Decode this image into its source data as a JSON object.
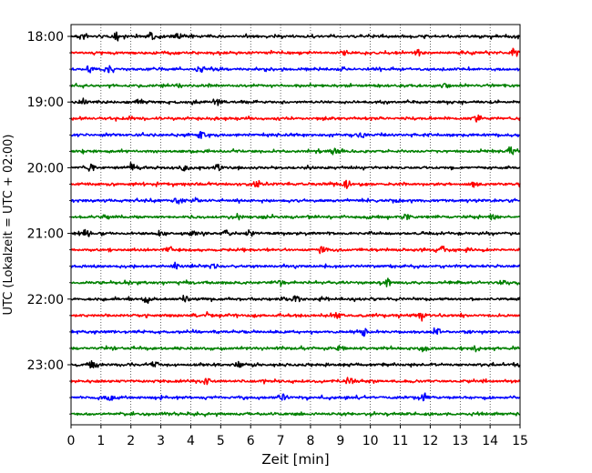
{
  "chart_data": {
    "type": "line",
    "subtype": "helicorder",
    "xlabel": "Zeit  [min]",
    "ylabel": "UTC (Lokalzeit = UTC + 02:00)",
    "xlim": [
      0,
      15
    ],
    "x_ticks": [
      "0",
      "1",
      "2",
      "3",
      "4",
      "5",
      "6",
      "7",
      "8",
      "9",
      "10",
      "11",
      "12",
      "13",
      "14",
      "15"
    ],
    "y_ticks": [
      "18:00",
      "19:00",
      "20:00",
      "21:00",
      "22:00",
      "23:00"
    ],
    "grid": "vertical dotted",
    "trace_minutes": 15,
    "trace_colors": [
      "#000000",
      "#ff0000",
      "#0000ff",
      "#008000"
    ],
    "traces": [
      {
        "start": "18:00",
        "bursts": [
          0.4,
          1.5,
          2.7,
          3.6
        ]
      },
      {
        "start": "18:15",
        "bursts": [
          9.1,
          11.6,
          14.8
        ]
      },
      {
        "start": "18:30",
        "bursts": [
          0.6,
          1.3,
          4.3
        ]
      },
      {
        "start": "18:45",
        "bursts": [
          12.5
        ]
      },
      {
        "start": "19:00",
        "bursts": [
          0.4,
          2.3,
          4.1,
          4.9
        ]
      },
      {
        "start": "19:15",
        "bursts": [
          13.6,
          15.0
        ]
      },
      {
        "start": "19:30",
        "bursts": [
          4.4,
          9.7
        ]
      },
      {
        "start": "19:45",
        "bursts": [
          8.8,
          14.7
        ]
      },
      {
        "start": "20:00",
        "bursts": [
          0.7,
          2.0,
          3.8,
          4.9
        ]
      },
      {
        "start": "20:15",
        "bursts": [
          6.2,
          9.2,
          13.5
        ]
      },
      {
        "start": "20:30",
        "bursts": [
          3.5,
          4.1
        ]
      },
      {
        "start": "20:45",
        "bursts": [
          5.6,
          11.2,
          14.1
        ]
      },
      {
        "start": "21:00",
        "bursts": [
          0.5,
          3.0,
          4.1,
          5.2,
          6.0
        ]
      },
      {
        "start": "21:15",
        "bursts": [
          3.3,
          8.4,
          12.4
        ]
      },
      {
        "start": "21:30",
        "bursts": [
          3.5,
          4.8
        ]
      },
      {
        "start": "21:45",
        "bursts": [
          7.0,
          10.6,
          14.4
        ]
      },
      {
        "start": "22:00",
        "bursts": [
          2.5,
          3.8,
          7.5
        ]
      },
      {
        "start": "22:15",
        "bursts": [
          4.6,
          8.9,
          11.7
        ]
      },
      {
        "start": "22:30",
        "bursts": [
          9.8,
          12.2
        ]
      },
      {
        "start": "22:45",
        "bursts": [
          9.0,
          11.8,
          13.5
        ]
      },
      {
        "start": "23:00",
        "bursts": [
          0.7,
          2.8,
          5.6
        ]
      },
      {
        "start": "23:15",
        "bursts": [
          4.5,
          9.3
        ]
      },
      {
        "start": "23:30",
        "bursts": [
          1.3,
          7.1,
          11.8
        ]
      },
      {
        "start": "23:45",
        "bursts": []
      }
    ]
  }
}
